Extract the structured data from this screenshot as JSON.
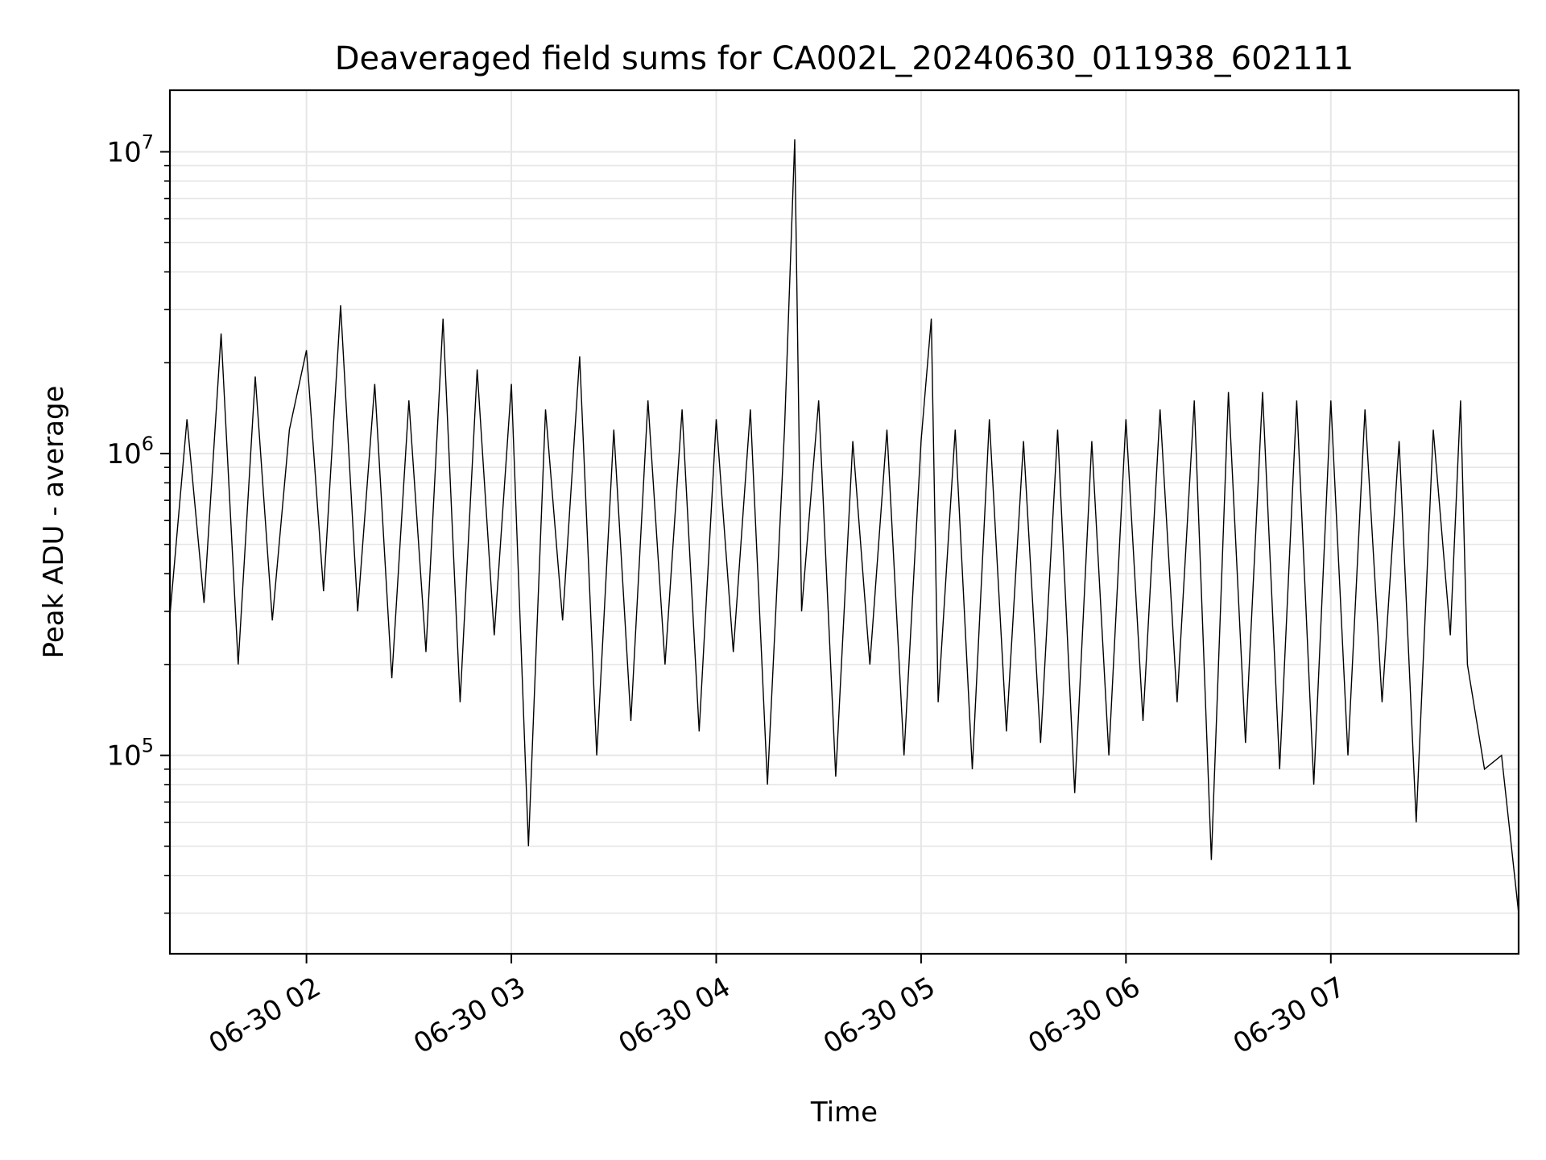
{
  "chart_data": {
    "type": "line",
    "title": "Deaveraged field sums for CA002L_20240630_011938_602111",
    "xlabel": "Time",
    "ylabel": "Peak ADU - average",
    "yscale": "log",
    "ylim": [
      22000,
      16000000
    ],
    "y_ticks": [
      {
        "value": 100000,
        "base": "10",
        "exp": "5"
      },
      {
        "value": 1000000,
        "base": "10",
        "exp": "6"
      },
      {
        "value": 10000000,
        "base": "10",
        "exp": "7"
      }
    ],
    "xlim": [
      "2024-06-30 01:20",
      "2024-06-30 07:55"
    ],
    "x_ticks": [
      {
        "value": "2024-06-30 02:00",
        "label": "06-30 02"
      },
      {
        "value": "2024-06-30 03:00",
        "label": "06-30 03"
      },
      {
        "value": "2024-06-30 04:00",
        "label": "06-30 04"
      },
      {
        "value": "2024-06-30 05:00",
        "label": "06-30 05"
      },
      {
        "value": "2024-06-30 06:00",
        "label": "06-30 06"
      },
      {
        "value": "2024-06-30 07:00",
        "label": "06-30 07"
      }
    ],
    "grid": true,
    "line_color": "#000000",
    "series": [
      {
        "name": "",
        "x": [
          "2024-06-30 01:20",
          "2024-06-30 01:25",
          "2024-06-30 01:30",
          "2024-06-30 01:35",
          "2024-06-30 01:40",
          "2024-06-30 01:45",
          "2024-06-30 01:50",
          "2024-06-30 01:55",
          "2024-06-30 02:00",
          "2024-06-30 02:05",
          "2024-06-30 02:10",
          "2024-06-30 02:15",
          "2024-06-30 02:20",
          "2024-06-30 02:25",
          "2024-06-30 02:30",
          "2024-06-30 02:35",
          "2024-06-30 02:40",
          "2024-06-30 02:45",
          "2024-06-30 02:50",
          "2024-06-30 02:55",
          "2024-06-30 03:00",
          "2024-06-30 03:05",
          "2024-06-30 03:10",
          "2024-06-30 03:15",
          "2024-06-30 03:20",
          "2024-06-30 03:25",
          "2024-06-30 03:30",
          "2024-06-30 03:35",
          "2024-06-30 03:40",
          "2024-06-30 03:45",
          "2024-06-30 03:50",
          "2024-06-30 03:55",
          "2024-06-30 04:00",
          "2024-06-30 04:05",
          "2024-06-30 04:10",
          "2024-06-30 04:15",
          "2024-06-30 04:20",
          "2024-06-30 04:23",
          "2024-06-30 04:25",
          "2024-06-30 04:30",
          "2024-06-30 04:35",
          "2024-06-30 04:40",
          "2024-06-30 04:45",
          "2024-06-30 04:50",
          "2024-06-30 04:55",
          "2024-06-30 05:00",
          "2024-06-30 05:03",
          "2024-06-30 05:05",
          "2024-06-30 05:10",
          "2024-06-30 05:15",
          "2024-06-30 05:20",
          "2024-06-30 05:25",
          "2024-06-30 05:30",
          "2024-06-30 05:35",
          "2024-06-30 05:40",
          "2024-06-30 05:45",
          "2024-06-30 05:50",
          "2024-06-30 05:55",
          "2024-06-30 06:00",
          "2024-06-30 06:05",
          "2024-06-30 06:10",
          "2024-06-30 06:15",
          "2024-06-30 06:20",
          "2024-06-30 06:25",
          "2024-06-30 06:30",
          "2024-06-30 06:35",
          "2024-06-30 06:40",
          "2024-06-30 06:45",
          "2024-06-30 06:50",
          "2024-06-30 06:55",
          "2024-06-30 07:00",
          "2024-06-30 07:05",
          "2024-06-30 07:10",
          "2024-06-30 07:15",
          "2024-06-30 07:20",
          "2024-06-30 07:25",
          "2024-06-30 07:30",
          "2024-06-30 07:35",
          "2024-06-30 07:38",
          "2024-06-30 07:40",
          "2024-06-30 07:45",
          "2024-06-30 07:50",
          "2024-06-30 07:55"
        ],
        "y": [
          290000,
          1300000,
          320000,
          2500000,
          200000,
          1800000,
          280000,
          1200000,
          2200000,
          350000,
          3100000,
          300000,
          1700000,
          180000,
          1500000,
          220000,
          2800000,
          150000,
          1900000,
          250000,
          1700000,
          50000,
          1400000,
          280000,
          2100000,
          100000,
          1200000,
          130000,
          1500000,
          200000,
          1400000,
          120000,
          1300000,
          220000,
          1400000,
          80000,
          1200000,
          11000000,
          300000,
          1500000,
          85000,
          1100000,
          200000,
          1200000,
          100000,
          1100000,
          2800000,
          150000,
          1200000,
          90000,
          1300000,
          120000,
          1100000,
          110000,
          1200000,
          75000,
          1100000,
          100000,
          1300000,
          130000,
          1400000,
          150000,
          1500000,
          45000,
          1600000,
          110000,
          1600000,
          90000,
          1500000,
          80000,
          1500000,
          100000,
          1400000,
          150000,
          1100000,
          60000,
          1200000,
          250000,
          1500000,
          200000,
          90000,
          100000,
          30000
        ]
      }
    ]
  }
}
